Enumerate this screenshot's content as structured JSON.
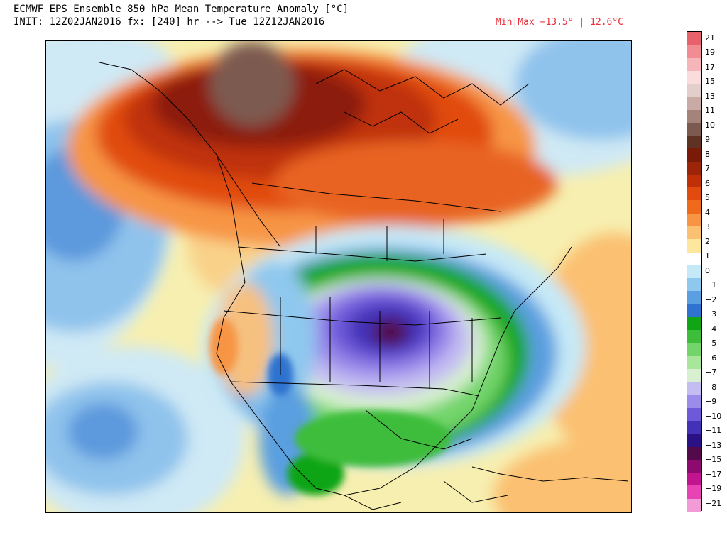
{
  "header": {
    "title_line1": "ECMWF EPS Ensemble 850 hPa Mean Temperature Anomaly [°C]",
    "title_line2": "INIT: 12Z02JAN2016 fx: [240] hr --> Tue 12Z12JAN2016",
    "minmax": "Min|Max −13.5° | 12.6°C"
  },
  "legend": {
    "ticks": [
      "21",
      "19",
      "17",
      "15",
      "13",
      "11",
      "10",
      "9",
      "8",
      "7",
      "6",
      "5",
      "4",
      "3",
      "2",
      "1",
      "0",
      "−1",
      "−2",
      "−3",
      "−4",
      "−5",
      "−6",
      "−7",
      "−8",
      "−9",
      "−10",
      "−11",
      "−13",
      "−15",
      "−17",
      "−19",
      "−21"
    ],
    "colors": [
      "#e8626b",
      "#f08c92",
      "#f6b6b9",
      "#fbdcdc",
      "#e2cfcc",
      "#c9aba5",
      "#a4837a",
      "#7d5a4f",
      "#5e3323",
      "#7a1a08",
      "#9c2408",
      "#bf3009",
      "#e14b0f",
      "#f06a1c",
      "#f79544",
      "#fbc071",
      "#fde79f",
      "#ffffff",
      "#c6e9f7",
      "#8fc8ee",
      "#5a9fe0",
      "#2f72cf",
      "#0fa514",
      "#3dbd3a",
      "#72d46a",
      "#a8e69b",
      "#d8f0d0",
      "#c4bdf2",
      "#9b8bea",
      "#6e5ad9",
      "#4331b8",
      "#2a1284",
      "#520a4a",
      "#8d0b6f",
      "#c2148f",
      "#e743b4",
      "#f29bd7"
    ]
  },
  "map": {
    "name": "North America 850 hPa temperature anomaly"
  }
}
